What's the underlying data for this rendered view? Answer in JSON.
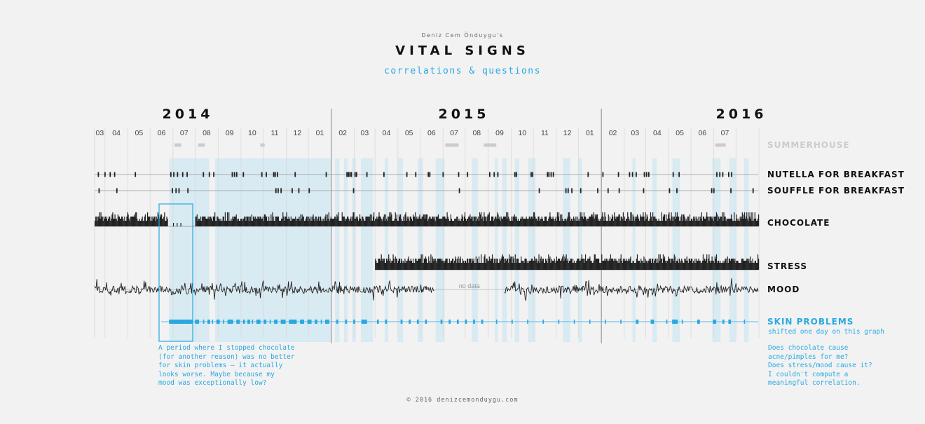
{
  "header": {
    "author": "Deniz Cem Önduygu's",
    "title": "VITAL SIGNS",
    "subtitle": "correlations & questions"
  },
  "footer": "© 2016 denizcemonduygu.com",
  "colors": {
    "accent": "#29a9e1",
    "highlight": "#cfe7f1",
    "ink": "#222222",
    "muted": "#cccccc",
    "background": "#f2f2f2"
  },
  "notes": {
    "left": "A period where I stopped chocolate\n(for another reason) was no better\nfor skin problems – it actually\nlooks worse. Maybe because my\nmood was exceptionally low?",
    "right": "Does chocolate cause\nacne/pimples for me?\nDoes stress/mood cause it?\nI couldn't compute a\nmeaningful correlation."
  },
  "chart_data": {
    "type": "timeline",
    "time_range": [
      "2014-02-15",
      "2016-07-31"
    ],
    "years": [
      "2014",
      "2015",
      "2016"
    ],
    "month_labels": [
      "03",
      "04",
      "05",
      "06",
      "07",
      "08",
      "09",
      "10",
      "11",
      "12",
      "01",
      "02",
      "03",
      "04",
      "05",
      "06",
      "07",
      "08",
      "09",
      "10",
      "11",
      "12",
      "01",
      "02",
      "03",
      "04",
      "05",
      "06",
      "07"
    ],
    "highlight_periods": [
      [
        "2014-05-27",
        "2014-07-20"
      ],
      [
        "2014-07-28",
        "2014-12-31"
      ],
      [
        "2015-01-06",
        "2015-01-12"
      ],
      [
        "2015-01-18",
        "2015-01-23"
      ],
      [
        "2015-01-29",
        "2015-02-03"
      ],
      [
        "2015-02-10",
        "2015-02-26"
      ],
      [
        "2015-03-14",
        "2015-03-19"
      ],
      [
        "2015-04-01",
        "2015-04-08"
      ],
      [
        "2015-04-28",
        "2015-05-05"
      ],
      [
        "2015-05-22",
        "2015-06-03"
      ],
      [
        "2015-07-10",
        "2015-07-18"
      ],
      [
        "2015-08-10",
        "2015-08-14"
      ],
      [
        "2015-08-20",
        "2015-08-26"
      ],
      [
        "2015-09-06",
        "2015-09-12"
      ],
      [
        "2015-09-24",
        "2015-10-04"
      ],
      [
        "2015-11-10",
        "2015-11-20"
      ],
      [
        "2015-12-01",
        "2015-12-06"
      ],
      [
        "2016-02-12",
        "2016-02-16"
      ],
      [
        "2016-03-10",
        "2016-03-16"
      ],
      [
        "2016-04-06",
        "2016-04-16"
      ],
      [
        "2016-05-30",
        "2016-06-10"
      ],
      [
        "2016-06-22",
        "2016-07-01"
      ],
      [
        "2016-07-12",
        "2016-07-18"
      ]
    ],
    "annotation_period": [
      "2014-05-25",
      "2014-07-01"
    ],
    "series": [
      {
        "name": "SUMMERHOUSE",
        "kind": "periods",
        "color": "#cccccc",
        "periods": [
          [
            "2014-06-03",
            "2014-06-12"
          ],
          [
            "2014-07-05",
            "2014-07-14"
          ],
          [
            "2014-09-27",
            "2014-10-03"
          ],
          [
            "2015-06-04",
            "2015-06-22"
          ],
          [
            "2015-07-26",
            "2015-08-12"
          ],
          [
            "2016-06-03",
            "2016-06-17"
          ]
        ]
      },
      {
        "name": "NUTELLA FOR BREAKFAST",
        "kind": "events",
        "dates": [
          "2014-02-20",
          "2014-03-01",
          "2014-03-08",
          "2014-03-14",
          "2014-04-11",
          "2014-05-29",
          "2014-06-02",
          "2014-06-07",
          "2014-06-14",
          "2014-06-20",
          "2014-07-12",
          "2014-07-20",
          "2014-07-26",
          "2014-08-20",
          "2014-08-23",
          "2014-08-26",
          "2014-09-04",
          "2014-09-29",
          "2014-10-05",
          "2014-10-15",
          "2014-10-17",
          "2014-10-20",
          "2014-11-13",
          "2014-12-25",
          "2015-01-22",
          "2015-01-24",
          "2015-01-26",
          "2015-01-28",
          "2015-02-02",
          "2015-02-04",
          "2015-02-18",
          "2015-03-13",
          "2015-04-13",
          "2015-04-25",
          "2015-05-12",
          "2015-05-14",
          "2015-06-01",
          "2015-06-22",
          "2015-07-04",
          "2015-08-03",
          "2015-08-09",
          "2015-08-14",
          "2015-09-06",
          "2015-09-08",
          "2015-09-28",
          "2015-09-30",
          "2015-10-20",
          "2015-10-22",
          "2015-10-25",
          "2015-10-28",
          "2015-12-14",
          "2016-01-03",
          "2016-01-24",
          "2016-02-08",
          "2016-02-12",
          "2016-02-17",
          "2016-02-28",
          "2016-03-02",
          "2016-03-05",
          "2016-04-07",
          "2016-04-15",
          "2016-06-05",
          "2016-06-09",
          "2016-06-13",
          "2016-06-21",
          "2016-06-25"
        ]
      },
      {
        "name": "SOUFFLE FOR BREAKFAST",
        "kind": "events",
        "dates": [
          "2014-02-21",
          "2014-03-17",
          "2014-05-31",
          "2014-06-05",
          "2014-06-09",
          "2014-06-21",
          "2014-10-18",
          "2014-10-21",
          "2014-10-25",
          "2014-11-09",
          "2014-11-18",
          "2014-12-02",
          "2015-01-31",
          "2015-06-23",
          "2015-10-09",
          "2015-11-14",
          "2015-11-17",
          "2015-11-22",
          "2015-12-04",
          "2015-12-27",
          "2016-01-10",
          "2016-01-25",
          "2016-02-27",
          "2016-04-02",
          "2016-04-12",
          "2016-05-29",
          "2016-06-01",
          "2016-06-24",
          "2016-07-24"
        ]
      },
      {
        "name": "CHOCOLATE",
        "kind": "daily_bars",
        "range": [
          "2014-02-15",
          "2016-07-31"
        ],
        "gap": [
          "2014-05-25",
          "2014-07-01"
        ]
      },
      {
        "name": "STRESS",
        "kind": "daily_bars",
        "range": [
          "2015-03-01",
          "2016-07-31"
        ]
      },
      {
        "name": "MOOD",
        "kind": "line",
        "segments": [
          [
            "2014-02-15",
            "2015-05-20"
          ],
          [
            "2015-08-23",
            "2016-07-31"
          ]
        ],
        "gap_label": "no data"
      },
      {
        "name": "SKIN PROBLEMS",
        "kind": "events",
        "color": "#29a9e1",
        "sublabel": "shifted one day on this graph",
        "dates": [
          "2014-05-27",
          "2014-05-28",
          "2014-05-29",
          "2014-05-30",
          "2014-05-31",
          "2014-06-01",
          "2014-06-02",
          "2014-06-03",
          "2014-06-04",
          "2014-06-05",
          "2014-06-06",
          "2014-06-07",
          "2014-06-08",
          "2014-06-09",
          "2014-06-10",
          "2014-06-11",
          "2014-06-12",
          "2014-06-13",
          "2014-06-14",
          "2014-06-15",
          "2014-06-16",
          "2014-06-17",
          "2014-06-18",
          "2014-06-19",
          "2014-06-20",
          "2014-06-21",
          "2014-06-22",
          "2014-06-23",
          "2014-06-24",
          "2014-06-25",
          "2014-06-26",
          "2014-06-27",
          "2014-07-01",
          "2014-07-02",
          "2014-07-03",
          "2014-07-04",
          "2014-07-05",
          "2014-07-12",
          "2014-07-18",
          "2014-07-19",
          "2014-07-20",
          "2014-07-24",
          "2014-07-30",
          "2014-07-31",
          "2014-08-01",
          "2014-08-02",
          "2014-08-08",
          "2014-08-14",
          "2014-08-15",
          "2014-08-16",
          "2014-08-17",
          "2014-08-18",
          "2014-08-19",
          "2014-08-20",
          "2014-08-26",
          "2014-08-27",
          "2014-08-28",
          "2014-08-29",
          "2014-09-04",
          "2014-09-05",
          "2014-09-10",
          "2014-09-11",
          "2014-09-12",
          "2014-09-16",
          "2014-09-22",
          "2014-09-23",
          "2014-09-24",
          "2014-09-25",
          "2014-09-26",
          "2014-10-02",
          "2014-10-03",
          "2014-10-04",
          "2014-10-10",
          "2014-10-16",
          "2014-10-17",
          "2014-10-18",
          "2014-10-19",
          "2014-10-25",
          "2014-10-26",
          "2014-10-27",
          "2014-10-28",
          "2014-10-29",
          "2014-10-30",
          "2014-11-05",
          "2014-11-06",
          "2014-11-07",
          "2014-11-08",
          "2014-11-09",
          "2014-11-10",
          "2014-11-11",
          "2014-11-12",
          "2014-11-13",
          "2014-11-14",
          "2014-11-20",
          "2014-11-21",
          "2014-11-22",
          "2014-11-23",
          "2014-11-24",
          "2014-11-30",
          "2014-12-01",
          "2014-12-02",
          "2014-12-03",
          "2014-12-04",
          "2014-12-10",
          "2014-12-11",
          "2014-12-12",
          "2014-12-18",
          "2014-12-24",
          "2014-12-25",
          "2014-12-26",
          "2014-12-27",
          "2014-12-28",
          "2015-01-08",
          "2015-01-09",
          "2015-01-20",
          "2015-01-21",
          "2015-01-31",
          "2015-02-01",
          "2015-02-11",
          "2015-02-12",
          "2015-02-13",
          "2015-02-14",
          "2015-02-15",
          "2015-02-16",
          "2015-02-17",
          "2015-03-04",
          "2015-03-05",
          "2015-03-15",
          "2015-03-16",
          "2015-04-05",
          "2015-04-06",
          "2015-04-16",
          "2015-04-17",
          "2015-04-27",
          "2015-04-28",
          "2015-05-08",
          "2015-05-09",
          "2015-05-29",
          "2015-05-30",
          "2015-06-09",
          "2015-06-10",
          "2015-06-20",
          "2015-06-21",
          "2015-07-01",
          "2015-07-02",
          "2015-07-12",
          "2015-07-13",
          "2015-07-23",
          "2015-07-24",
          "2015-08-12",
          "2015-09-02",
          "2015-09-23",
          "2015-10-14",
          "2015-11-04",
          "2015-11-25",
          "2015-12-16",
          "2016-01-06",
          "2016-01-27",
          "2016-02-17",
          "2016-02-18",
          "2016-02-19",
          "2016-03-08",
          "2016-03-09",
          "2016-03-10",
          "2016-03-11",
          "2016-03-29",
          "2016-04-06",
          "2016-04-07",
          "2016-04-08",
          "2016-04-09",
          "2016-04-10",
          "2016-04-11",
          "2016-04-12",
          "2016-04-19",
          "2016-05-10",
          "2016-05-11",
          "2016-05-12",
          "2016-05-31",
          "2016-06-01",
          "2016-06-02",
          "2016-06-03",
          "2016-06-13",
          "2016-06-14",
          "2016-06-21",
          "2016-06-22",
          "2016-06-23",
          "2016-07-12"
        ]
      }
    ]
  }
}
